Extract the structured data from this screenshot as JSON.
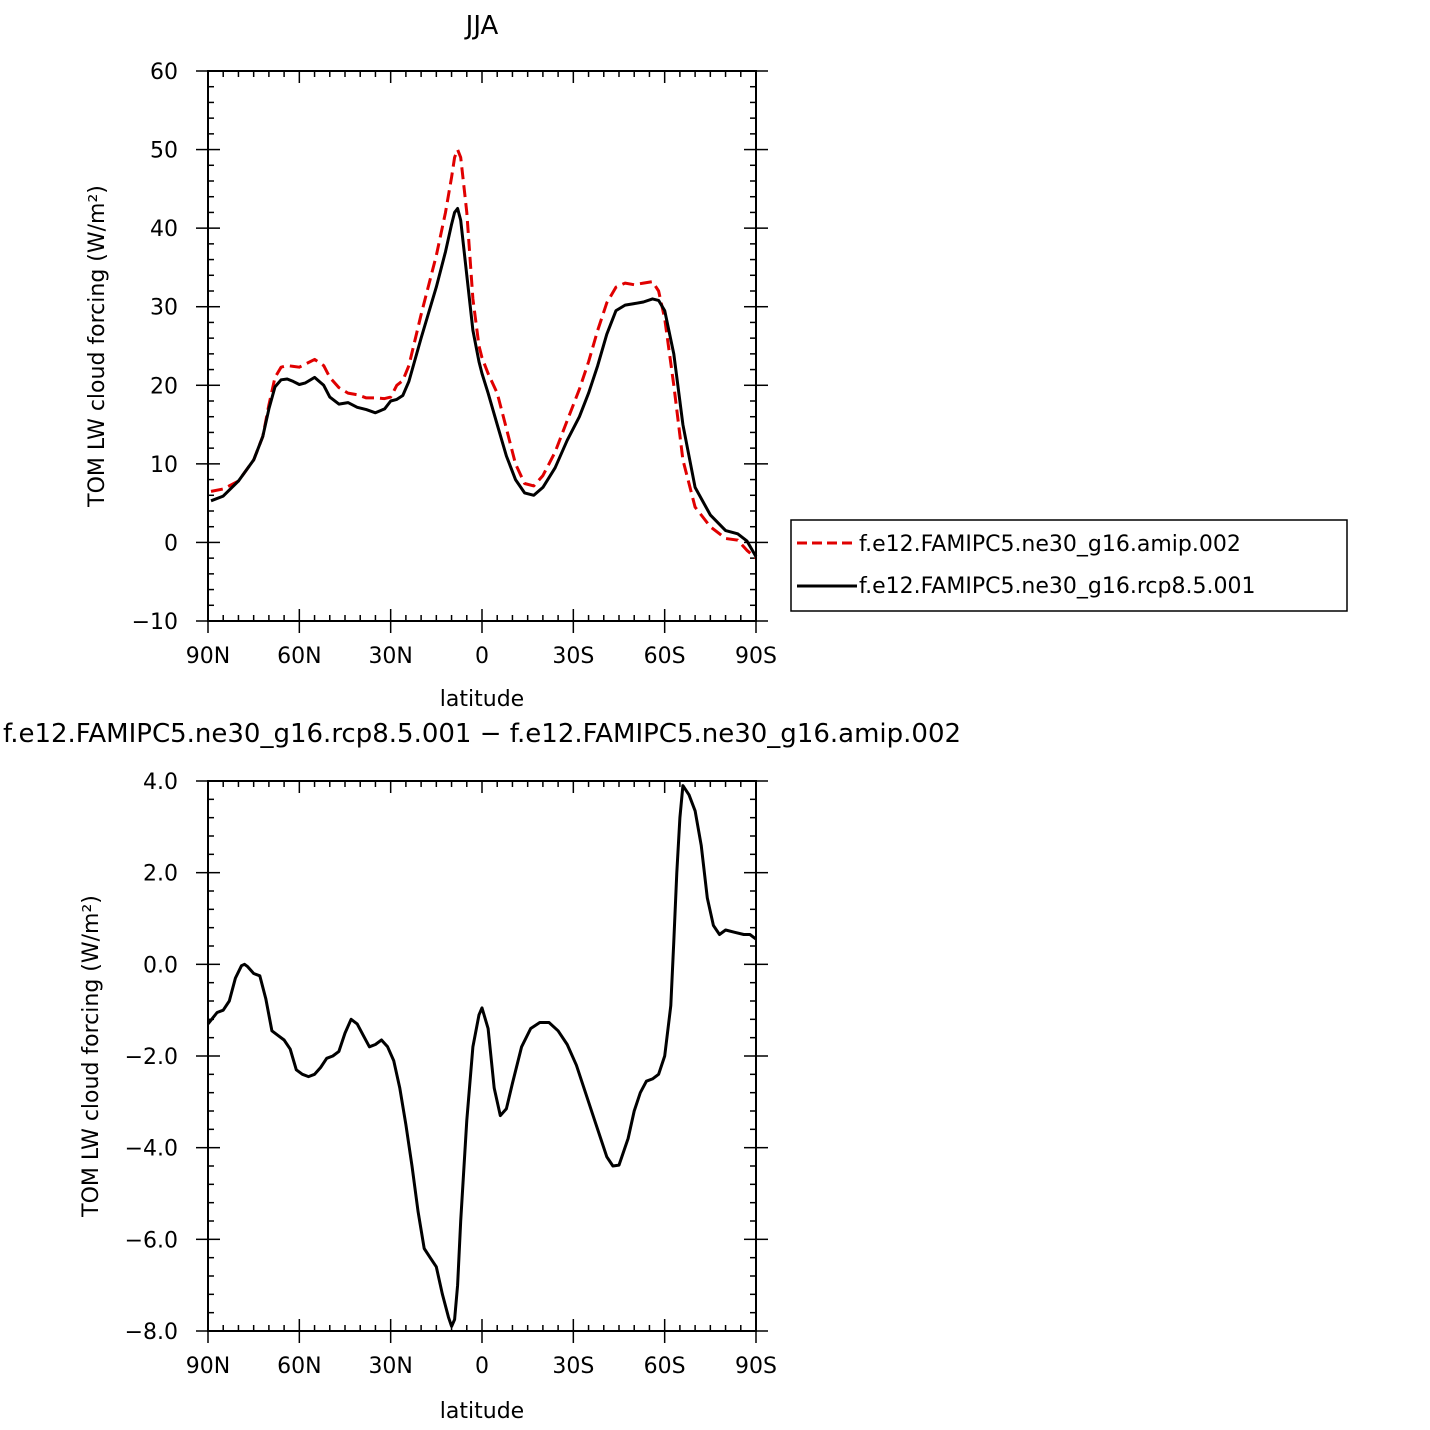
{
  "chart_data": [
    {
      "type": "line",
      "title": "JJA",
      "xlabel": "latitude",
      "ylabel": "TOM LW cloud forcing (W/m²)",
      "xlim": [
        90,
        -90
      ],
      "ylim": [
        -10,
        60
      ],
      "x_ticks": [
        90,
        60,
        30,
        0,
        -30,
        -60,
        -90
      ],
      "x_tick_labels": [
        "90N",
        "60N",
        "30N",
        "0",
        "30S",
        "60S",
        "90S"
      ],
      "y_ticks": [
        -10,
        0,
        10,
        20,
        30,
        40,
        50,
        60
      ],
      "y_tick_labels": [
        "−10",
        "0",
        "10",
        "20",
        "30",
        "40",
        "50",
        "60"
      ],
      "legend": "right",
      "grid": false,
      "series": [
        {
          "name": "f.e12.FAMIPC5.ne30_g16.amip.002",
          "color": "#e00000",
          "dash": "dashed",
          "x": [
            89,
            85,
            80,
            75,
            72,
            70,
            68,
            66,
            64,
            62,
            60,
            58,
            55,
            52,
            50,
            47,
            44,
            41,
            38,
            35,
            32,
            30,
            28,
            26,
            24,
            20,
            15,
            12,
            10,
            9,
            8,
            7,
            5,
            3,
            1,
            0,
            -2,
            -5,
            -8,
            -11,
            -14,
            -17,
            -20,
            -24,
            -28,
            -32,
            -35,
            -38,
            -41,
            -44,
            -47,
            -50,
            -53,
            -56,
            -58,
            -60,
            -63,
            -66,
            -70,
            -75,
            -80,
            -84,
            -87,
            -90
          ],
          "y": [
            6.5,
            6.8,
            7.8,
            10.5,
            13.5,
            17.5,
            21.0,
            22.3,
            22.5,
            22.4,
            22.3,
            22.7,
            23.3,
            22.5,
            21.0,
            19.7,
            19.0,
            18.8,
            18.4,
            18.4,
            18.3,
            18.5,
            20.0,
            20.6,
            22.5,
            29.0,
            36.5,
            42.0,
            46.5,
            49.0,
            50.0,
            49.0,
            42.0,
            31.0,
            25.0,
            23.5,
            21.5,
            19.0,
            14.5,
            10.0,
            7.5,
            7.2,
            8.5,
            11.5,
            15.5,
            19.5,
            23.0,
            27.0,
            30.5,
            32.5,
            33.0,
            32.8,
            33.0,
            33.2,
            32.0,
            28.5,
            20.0,
            10.5,
            4.5,
            2.0,
            0.5,
            0.3,
            -1.0,
            -2.0
          ]
        },
        {
          "name": "f.e12.FAMIPC5.ne30_g16.rcp8.5.001",
          "color": "#000000",
          "dash": "solid",
          "x": [
            89,
            85,
            80,
            75,
            72,
            70,
            68,
            66,
            64,
            62,
            60,
            58,
            55,
            52,
            50,
            47,
            44,
            41,
            38,
            35,
            32,
            30,
            28,
            26,
            24,
            20,
            15,
            12,
            10,
            9,
            8,
            7,
            5,
            3,
            1,
            0,
            -2,
            -5,
            -8,
            -11,
            -14,
            -17,
            -20,
            -24,
            -28,
            -32,
            -35,
            -38,
            -41,
            -44,
            -47,
            -50,
            -53,
            -56,
            -58,
            -60,
            -63,
            -66,
            -70,
            -75,
            -80,
            -84,
            -87,
            -90
          ],
          "y": [
            5.3,
            5.9,
            7.8,
            10.5,
            13.5,
            17.0,
            19.8,
            20.7,
            20.8,
            20.5,
            20.1,
            20.3,
            21.0,
            20.0,
            18.5,
            17.6,
            17.8,
            17.2,
            16.9,
            16.5,
            17.0,
            18.0,
            18.2,
            18.7,
            20.5,
            26.0,
            32.5,
            37.0,
            40.5,
            42.0,
            42.5,
            41.0,
            34.0,
            27.0,
            23.0,
            21.5,
            19.0,
            15.0,
            11.0,
            8.0,
            6.3,
            6.0,
            7.0,
            9.5,
            13.0,
            16.0,
            19.0,
            22.5,
            26.5,
            29.5,
            30.2,
            30.4,
            30.6,
            31.0,
            30.8,
            29.5,
            24.0,
            15.0,
            7.0,
            3.5,
            1.5,
            1.1,
            0.2,
            -1.8
          ]
        }
      ]
    },
    {
      "type": "line",
      "title": "f.e12.FAMIPC5.ne30_g16.rcp8.5.001 − f.e12.FAMIPC5.ne30_g16.amip.002",
      "xlabel": "latitude",
      "ylabel": "TOM LW cloud forcing (W/m²)",
      "xlim": [
        90,
        -90
      ],
      "ylim": [
        -8,
        4
      ],
      "x_ticks": [
        90,
        60,
        30,
        0,
        -30,
        -60,
        -90
      ],
      "x_tick_labels": [
        "90N",
        "60N",
        "30N",
        "0",
        "30S",
        "60S",
        "90S"
      ],
      "y_ticks": [
        -8,
        -6,
        -4,
        -2,
        0,
        2,
        4
      ],
      "y_tick_labels": [
        "−8.0",
        "−6.0",
        "−4.0",
        "−2.0",
        "0.0",
        "2.0",
        "4.0"
      ],
      "grid": false,
      "series": [
        {
          "color": "#000000",
          "dash": "solid",
          "x": [
            90,
            87,
            85,
            83,
            81,
            79,
            78,
            77,
            75,
            73,
            71,
            69,
            67,
            65,
            63,
            61,
            59,
            57,
            55,
            53,
            51,
            49,
            47,
            45,
            43,
            41,
            39,
            37,
            35,
            33,
            31,
            29,
            27,
            25,
            23,
            21,
            19,
            17,
            15,
            13,
            11,
            10,
            9,
            8,
            7,
            5,
            3,
            1,
            0,
            -2,
            -4,
            -6,
            -8,
            -10,
            -13,
            -16,
            -19,
            -22,
            -25,
            -28,
            -31,
            -34,
            -37,
            -39,
            -41,
            -43,
            -45,
            -48,
            -50,
            -52,
            -54,
            -56,
            -58,
            -60,
            -62,
            -63,
            -64,
            -65,
            -66,
            -68,
            -70,
            -72,
            -74,
            -76,
            -78,
            -80,
            -83,
            -86,
            -88,
            -90
          ],
          "y": [
            -1.3,
            -1.05,
            -1.0,
            -0.8,
            -0.3,
            -0.03,
            0.0,
            -0.05,
            -0.2,
            -0.25,
            -0.75,
            -1.45,
            -1.55,
            -1.65,
            -1.85,
            -2.3,
            -2.4,
            -2.45,
            -2.4,
            -2.25,
            -2.05,
            -2.0,
            -1.9,
            -1.5,
            -1.2,
            -1.3,
            -1.55,
            -1.8,
            -1.75,
            -1.65,
            -1.8,
            -2.1,
            -2.7,
            -3.5,
            -4.4,
            -5.4,
            -6.2,
            -6.4,
            -6.6,
            -7.2,
            -7.7,
            -7.9,
            -7.75,
            -7.0,
            -5.6,
            -3.4,
            -1.8,
            -1.1,
            -0.95,
            -1.4,
            -2.7,
            -3.3,
            -3.15,
            -2.6,
            -1.8,
            -1.4,
            -1.27,
            -1.27,
            -1.45,
            -1.75,
            -2.2,
            -2.8,
            -3.4,
            -3.8,
            -4.2,
            -4.4,
            -4.38,
            -3.8,
            -3.2,
            -2.8,
            -2.55,
            -2.5,
            -2.4,
            -2.0,
            -0.9,
            0.5,
            2.0,
            3.2,
            3.9,
            3.7,
            3.35,
            2.6,
            1.45,
            0.85,
            0.65,
            0.75,
            0.7,
            0.65,
            0.65,
            0.55
          ]
        }
      ]
    }
  ],
  "legend_items": [
    "f.e12.FAMIPC5.ne30_g16.amip.002",
    "f.e12.FAMIPC5.ne30_g16.rcp8.5.001"
  ]
}
